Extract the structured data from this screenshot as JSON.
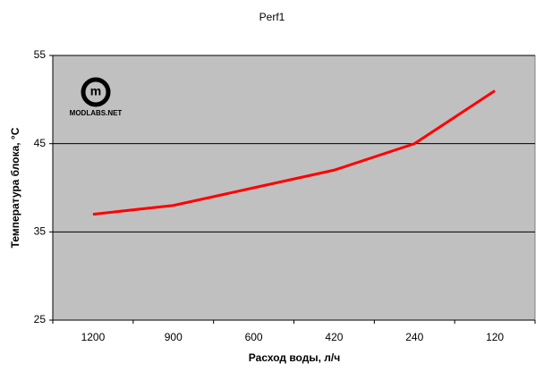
{
  "chart_data": {
    "type": "line",
    "title": "Perf1",
    "x_label": "Расход воды, л/ч",
    "y_label": "Температура блока, °C",
    "watermark": "MODLABS.NET",
    "categories": [
      "1200",
      "900",
      "600",
      "420",
      "240",
      "120"
    ],
    "values": [
      37,
      38,
      40,
      42,
      45,
      51
    ],
    "color": "#ff0000",
    "ylim": [
      25,
      55
    ],
    "yticks": [
      25,
      35,
      45,
      55
    ],
    "grid": true
  }
}
